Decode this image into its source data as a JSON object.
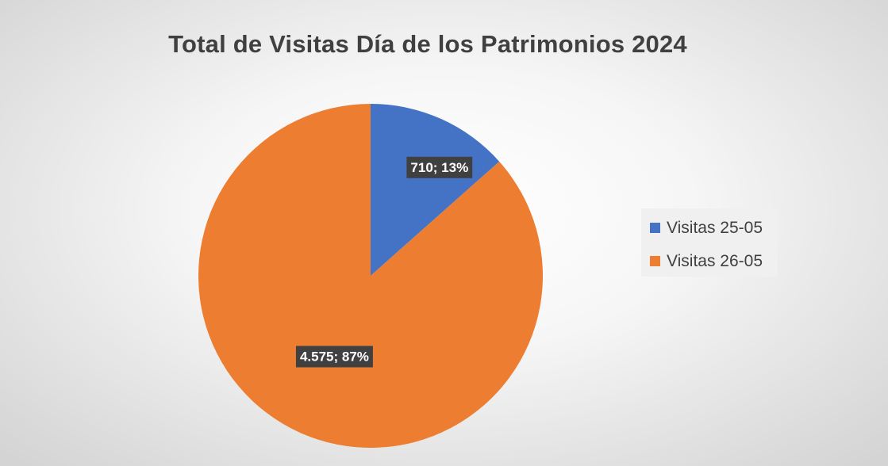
{
  "chart_data": {
    "type": "pie",
    "title": "Total de Visitas Día de los Patrimonios 2024",
    "categories": [
      "Visitas 25-05",
      "Visitas 26-05"
    ],
    "values": [
      710,
      4575
    ],
    "value_labels": [
      "710",
      "4.575"
    ],
    "percent_labels": [
      "13%",
      "87%"
    ],
    "data_labels": [
      "710; 13%",
      "4.575; 87%"
    ],
    "colors": [
      "#4472C4",
      "#ED7D31"
    ],
    "start_angle": "12 o'clock",
    "direction": "clockwise",
    "legend_position": "right"
  }
}
